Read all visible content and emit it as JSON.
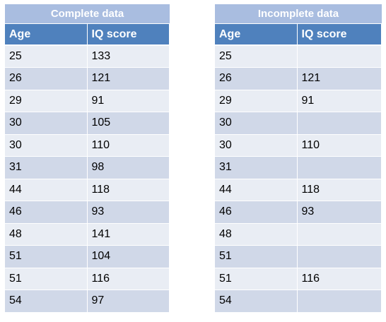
{
  "tables": [
    {
      "caption": "Complete data",
      "headers": [
        "Age",
        "IQ score"
      ],
      "rows": [
        [
          "25",
          "133"
        ],
        [
          "26",
          "121"
        ],
        [
          "29",
          "91"
        ],
        [
          "30",
          "105"
        ],
        [
          "30",
          "110"
        ],
        [
          "31",
          "98"
        ],
        [
          "44",
          "118"
        ],
        [
          "46",
          "93"
        ],
        [
          "48",
          "141"
        ],
        [
          "51",
          "104"
        ],
        [
          "51",
          "116"
        ],
        [
          "54",
          "97"
        ]
      ]
    },
    {
      "caption": "Incomplete data",
      "headers": [
        "Age",
        "IQ score"
      ],
      "rows": [
        [
          "25",
          ""
        ],
        [
          "26",
          "121"
        ],
        [
          "29",
          "91"
        ],
        [
          "30",
          ""
        ],
        [
          "30",
          "110"
        ],
        [
          "31",
          ""
        ],
        [
          "44",
          "118"
        ],
        [
          "46",
          "93"
        ],
        [
          "48",
          ""
        ],
        [
          "51",
          ""
        ],
        [
          "51",
          "116"
        ],
        [
          "54",
          ""
        ]
      ]
    }
  ],
  "colors": {
    "caption_bg": "#a9bde0",
    "header_bg": "#4f81bd",
    "row_odd": "#e9edf4",
    "row_even": "#d0d8e8"
  }
}
